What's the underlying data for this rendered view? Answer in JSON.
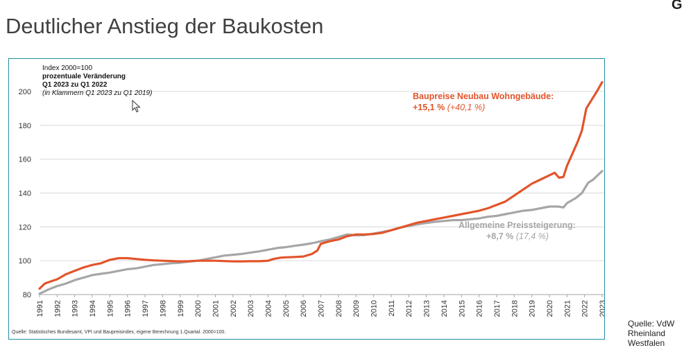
{
  "slide": {
    "title": "Deutlicher Anstieg der Baukosten",
    "corner_letter": "G",
    "side_source": [
      "Quelle: VdW",
      "Rheinland",
      "Westfalen"
    ]
  },
  "notes": {
    "line1": "Index 2000=100",
    "line2": "prozentuale Veränderung",
    "line3": "Q1 2023 zu Q1 2022",
    "line4": "(in Klammern  Q1 2023 zu  Q1 2019)"
  },
  "annotations": {
    "bau_title": "Baupreise Neubau Wohngebäude:",
    "bau_value": "+15,1 %",
    "bau_paren": "(+40,1 %)",
    "vpi_title": "Allgemeine Preissteigerung:",
    "vpi_value": "+8,7 %",
    "vpi_paren": "(17,4 %)"
  },
  "source_note": "Quelle: Statistisches Bundesamt, VPI und Baupreisindex, eigene Berechnung 1.Quartal. 2000=100.",
  "colors": {
    "bau": "#e2542a",
    "vpi": "#a6a6a6",
    "frame": "#1f8fa3",
    "grid": "#d9d9d9"
  },
  "chart_data": {
    "type": "line",
    "xlabel": "",
    "ylabel": "",
    "ylim": [
      80,
      210
    ],
    "yticks": [
      80,
      100,
      120,
      140,
      160,
      180,
      200
    ],
    "xticks": [
      "1991",
      "1992",
      "1993",
      "1994",
      "1995",
      "1996",
      "1997",
      "1998",
      "1999",
      "2000",
      "2001",
      "2002",
      "2003",
      "2004",
      "2005",
      "2006",
      "2007",
      "2008",
      "2009",
      "2010",
      "2011",
      "2012",
      "2013",
      "2014",
      "2015",
      "2016",
      "2017",
      "2018",
      "2019",
      "2020",
      "2021",
      "2022",
      "2023"
    ],
    "grid": "horizontal",
    "series": [
      {
        "name": "Baupreise Neubau Wohngebäude",
        "color": "#e2542a",
        "points": [
          [
            1991.0,
            83.5
          ],
          [
            1991.3,
            86.5
          ],
          [
            1991.7,
            88
          ],
          [
            1992.0,
            89
          ],
          [
            1992.5,
            92
          ],
          [
            1993.0,
            94
          ],
          [
            1993.5,
            96
          ],
          [
            1994.0,
            97.5
          ],
          [
            1994.5,
            98.5
          ],
          [
            1995.0,
            100.5
          ],
          [
            1995.5,
            101.5
          ],
          [
            1996.0,
            101.5
          ],
          [
            1996.5,
            101
          ],
          [
            1997.0,
            100.5
          ],
          [
            1997.5,
            100.2
          ],
          [
            1998.0,
            100
          ],
          [
            1998.5,
            99.8
          ],
          [
            1999.0,
            99.6
          ],
          [
            1999.5,
            99.7
          ],
          [
            2000.0,
            100
          ],
          [
            2000.5,
            100
          ],
          [
            2001.0,
            100
          ],
          [
            2001.5,
            99.8
          ],
          [
            2002.0,
            99.6
          ],
          [
            2002.5,
            99.6
          ],
          [
            2003.0,
            99.7
          ],
          [
            2003.5,
            99.7
          ],
          [
            2004.0,
            100
          ],
          [
            2004.3,
            101
          ],
          [
            2004.7,
            101.8
          ],
          [
            2005.0,
            102
          ],
          [
            2005.5,
            102.2
          ],
          [
            2006.0,
            102.5
          ],
          [
            2006.5,
            104
          ],
          [
            2006.8,
            106
          ],
          [
            2007.0,
            110
          ],
          [
            2007.5,
            111.5
          ],
          [
            2008.0,
            112.5
          ],
          [
            2008.5,
            114.5
          ],
          [
            2009.0,
            115.5
          ],
          [
            2009.5,
            115.5
          ],
          [
            2010.0,
            115.8
          ],
          [
            2010.5,
            116.5
          ],
          [
            2011.0,
            118
          ],
          [
            2011.5,
            119.5
          ],
          [
            2012.0,
            121
          ],
          [
            2012.5,
            122.5
          ],
          [
            2013.0,
            123.5
          ],
          [
            2013.5,
            124.5
          ],
          [
            2014.0,
            125.5
          ],
          [
            2014.5,
            126.5
          ],
          [
            2015.0,
            127.5
          ],
          [
            2015.5,
            128.5
          ],
          [
            2016.0,
            129.5
          ],
          [
            2016.5,
            131
          ],
          [
            2017.0,
            133
          ],
          [
            2017.5,
            135
          ],
          [
            2018.0,
            138.5
          ],
          [
            2018.5,
            142
          ],
          [
            2019.0,
            145.5
          ],
          [
            2019.5,
            148
          ],
          [
            2020.0,
            150.5
          ],
          [
            2020.3,
            152
          ],
          [
            2020.55,
            149
          ],
          [
            2020.8,
            149.5
          ],
          [
            2021.0,
            156
          ],
          [
            2021.3,
            163
          ],
          [
            2021.6,
            170
          ],
          [
            2021.85,
            177
          ],
          [
            2022.1,
            190
          ],
          [
            2022.4,
            195
          ],
          [
            2022.7,
            200
          ],
          [
            2023.0,
            205.5
          ]
        ]
      },
      {
        "name": "Allgemeine Preissteigerung",
        "color": "#a6a6a6",
        "points": [
          [
            1991.0,
            80.5
          ],
          [
            1991.5,
            83
          ],
          [
            1992.0,
            85
          ],
          [
            1992.5,
            86.5
          ],
          [
            1993.0,
            88.5
          ],
          [
            1993.5,
            90
          ],
          [
            1994.0,
            91.5
          ],
          [
            1994.5,
            92.3
          ],
          [
            1995.0,
            93
          ],
          [
            1995.5,
            94
          ],
          [
            1996.0,
            95
          ],
          [
            1996.5,
            95.5
          ],
          [
            1997.0,
            96.5
          ],
          [
            1997.5,
            97.5
          ],
          [
            1998.0,
            98
          ],
          [
            1998.5,
            98.5
          ],
          [
            1999.0,
            98.8
          ],
          [
            1999.5,
            99.5
          ],
          [
            2000.0,
            100
          ],
          [
            2000.5,
            101
          ],
          [
            2001.0,
            102
          ],
          [
            2001.5,
            103
          ],
          [
            2002.0,
            103.5
          ],
          [
            2002.5,
            104
          ],
          [
            2003.0,
            104.8
          ],
          [
            2003.5,
            105.5
          ],
          [
            2004.0,
            106.5
          ],
          [
            2004.5,
            107.5
          ],
          [
            2005.0,
            108
          ],
          [
            2005.5,
            108.8
          ],
          [
            2006.0,
            109.5
          ],
          [
            2006.5,
            110.3
          ],
          [
            2007.0,
            111.5
          ],
          [
            2007.5,
            112.5
          ],
          [
            2008.0,
            114
          ],
          [
            2008.5,
            115.5
          ],
          [
            2009.0,
            115
          ],
          [
            2009.5,
            115.2
          ],
          [
            2010.0,
            116
          ],
          [
            2010.5,
            117
          ],
          [
            2011.0,
            118
          ],
          [
            2011.5,
            119.5
          ],
          [
            2012.0,
            120.5
          ],
          [
            2012.5,
            121.5
          ],
          [
            2013.0,
            122.3
          ],
          [
            2013.5,
            123
          ],
          [
            2014.0,
            123.5
          ],
          [
            2014.5,
            124
          ],
          [
            2015.0,
            124
          ],
          [
            2015.5,
            124.5
          ],
          [
            2016.0,
            125
          ],
          [
            2016.5,
            126
          ],
          [
            2017.0,
            126.5
          ],
          [
            2017.5,
            127.5
          ],
          [
            2018.0,
            128.5
          ],
          [
            2018.5,
            129.5
          ],
          [
            2019.0,
            130
          ],
          [
            2019.5,
            131
          ],
          [
            2020.0,
            132
          ],
          [
            2020.5,
            132
          ],
          [
            2020.8,
            131.5
          ],
          [
            2021.0,
            134
          ],
          [
            2021.5,
            137
          ],
          [
            2021.85,
            140
          ],
          [
            2022.2,
            146
          ],
          [
            2022.5,
            148
          ],
          [
            2022.8,
            151
          ],
          [
            2023.0,
            153
          ]
        ]
      }
    ]
  }
}
